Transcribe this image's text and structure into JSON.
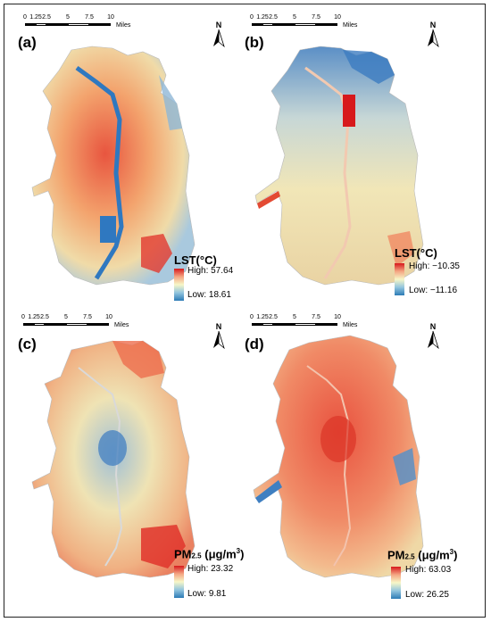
{
  "scalebar": {
    "ticks": [
      "0",
      "1.25",
      "2.5",
      "5",
      "7.5",
      "10"
    ],
    "units": "Miles"
  },
  "north_label": "N",
  "panels": [
    {
      "letter": "(a)",
      "legend_title": "LST(°C)",
      "legend_high": "High: 57.64",
      "legend_low": "Low: 18.61",
      "dominant_color": "#f1a16f",
      "accent_color": "#3d7fc0"
    },
    {
      "letter": "(b)",
      "legend_title": "LST(°C)",
      "legend_high": "High: −10.35",
      "legend_low": "Low: −11.16",
      "dominant_color": "#eee2b4",
      "accent_color": "#4b84c2"
    },
    {
      "letter": "(c)",
      "legend_title_main": "PM",
      "legend_title_sub": "2.5",
      "legend_title_units": " (μg/m",
      "legend_title_sup": "3",
      "legend_title_end": ")",
      "legend_high": "High: 23.32",
      "legend_low": "Low: 9.81",
      "dominant_color": "#e8d6a7",
      "accent_color": "#e3503c"
    },
    {
      "letter": "(d)",
      "legend_title_main": "PM",
      "legend_title_sub": "2.5",
      "legend_title_units": " (μg/m",
      "legend_title_sup": "3",
      "legend_title_end": ")",
      "legend_high": "High: 63.03",
      "legend_low": "Low: 26.25",
      "dominant_color": "#ee7a5c",
      "accent_color": "#3e7fc0"
    }
  ]
}
